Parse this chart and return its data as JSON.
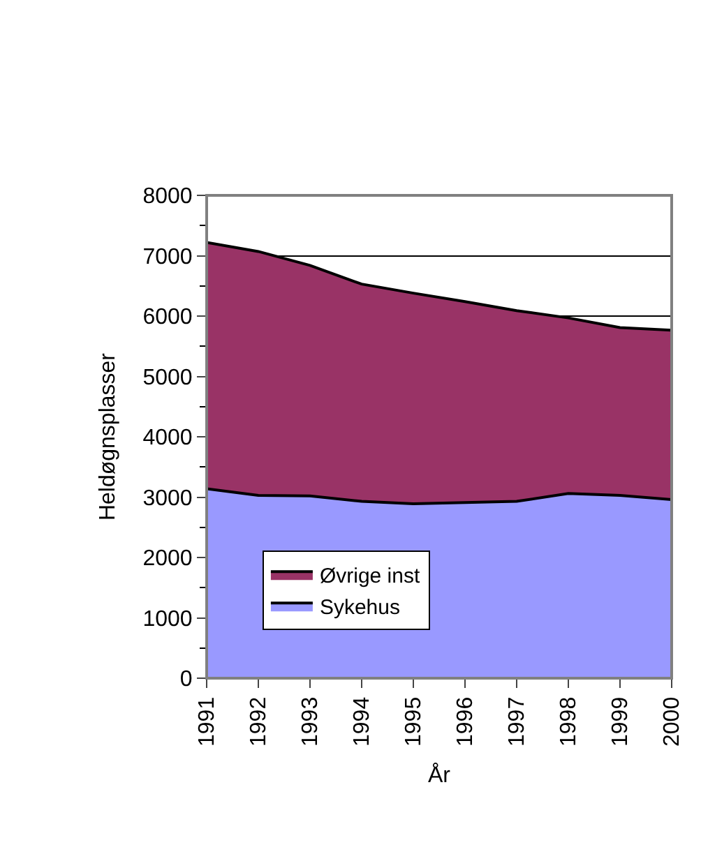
{
  "chart_data": {
    "type": "area",
    "stacked": true,
    "xlabel": "År",
    "ylabel": "Heldøgnsplasser",
    "categories": [
      "1991",
      "1992",
      "1993",
      "1994",
      "1995",
      "1996",
      "1997",
      "1998",
      "1999",
      "2000"
    ],
    "series": [
      {
        "name": "Sykehus",
        "color": "#9999ff",
        "values": [
          3140,
          3030,
          3020,
          2930,
          2890,
          2910,
          2930,
          3060,
          3030,
          2960
        ]
      },
      {
        "name": "Øvrige inst",
        "color": "#993366",
        "values": [
          4080,
          4040,
          3820,
          3600,
          3490,
          3330,
          3160,
          2910,
          2780,
          2805
        ]
      }
    ],
    "ylim": [
      0,
      8000
    ],
    "yticks": [
      0,
      1000,
      2000,
      3000,
      4000,
      5000,
      6000,
      7000,
      8000
    ],
    "grid": "y",
    "legend": "bottom left"
  }
}
